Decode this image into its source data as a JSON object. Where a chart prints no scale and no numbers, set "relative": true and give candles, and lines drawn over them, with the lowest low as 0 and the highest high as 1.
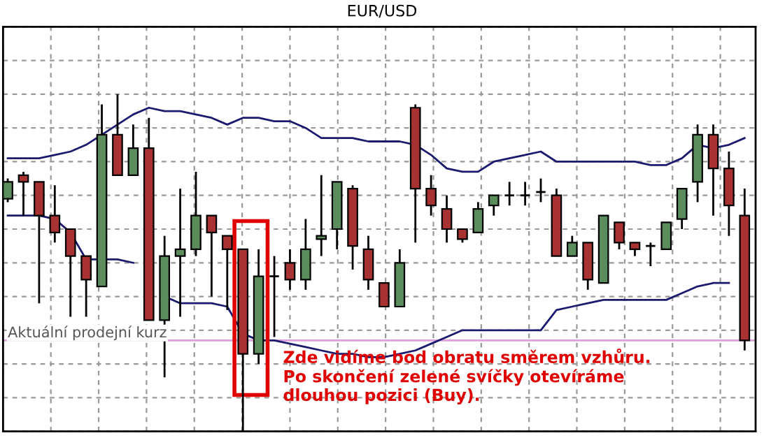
{
  "chart_data": {
    "type": "candlestick",
    "title": "EUR/USD",
    "relative": true,
    "grid": true,
    "tick_labels": false,
    "categories": [
      null,
      null,
      null,
      null,
      null,
      null,
      null,
      null,
      null,
      null,
      null,
      null,
      null,
      null,
      null,
      null,
      null,
      null,
      null,
      null,
      null,
      null,
      null,
      null,
      null,
      null,
      null,
      null,
      null,
      null,
      null,
      null,
      null,
      null,
      null,
      null,
      null,
      null,
      null,
      null,
      null,
      null,
      null,
      null,
      null,
      null,
      null,
      null
    ],
    "ohlc": [
      [
        0.69,
        0.75,
        0.68,
        0.74
      ],
      [
        0.76,
        0.77,
        0.64,
        0.74
      ],
      [
        0.74,
        0.74,
        0.38,
        0.64
      ],
      [
        0.64,
        0.73,
        0.56,
        0.59
      ],
      [
        0.6,
        0.6,
        0.34,
        0.52
      ],
      [
        0.52,
        0.52,
        0.34,
        0.45
      ],
      [
        0.43,
        0.97,
        0.43,
        0.88
      ],
      [
        0.88,
        1.0,
        0.76,
        0.76
      ],
      [
        0.76,
        0.91,
        0.76,
        0.84
      ],
      [
        0.84,
        0.93,
        0.33,
        0.33
      ],
      [
        0.33,
        0.58,
        0.16,
        0.52
      ],
      [
        0.52,
        0.72,
        0.34,
        0.54
      ],
      [
        0.54,
        0.77,
        0.52,
        0.64
      ],
      [
        0.64,
        0.64,
        0.4,
        0.59
      ],
      [
        0.58,
        0.58,
        0.36,
        0.54
      ],
      [
        0.54,
        0.54,
        0.0,
        0.23
      ],
      [
        0.23,
        0.54,
        0.2,
        0.46
      ],
      [
        0.46,
        0.52,
        0.28,
        0.46
      ],
      [
        0.5,
        0.54,
        0.42,
        0.45
      ],
      [
        0.45,
        0.63,
        0.42,
        0.54
      ],
      [
        0.57,
        0.76,
        0.52,
        0.58
      ],
      [
        0.6,
        0.74,
        0.54,
        0.74
      ],
      [
        0.72,
        0.73,
        0.48,
        0.55
      ],
      [
        0.54,
        0.58,
        0.42,
        0.45
      ],
      [
        0.44,
        0.44,
        0.37,
        0.37
      ],
      [
        0.37,
        0.54,
        0.37,
        0.5
      ],
      [
        0.96,
        0.97,
        0.56,
        0.72
      ],
      [
        0.72,
        0.76,
        0.64,
        0.67
      ],
      [
        0.66,
        0.7,
        0.56,
        0.6
      ],
      [
        0.6,
        0.6,
        0.56,
        0.57
      ],
      [
        0.59,
        0.68,
        0.59,
        0.66
      ],
      [
        0.67,
        0.7,
        0.64,
        0.7
      ],
      [
        0.7,
        0.74,
        0.67,
        0.7
      ],
      [
        0.7,
        0.74,
        0.67,
        0.7
      ],
      [
        0.71,
        0.75,
        0.68,
        0.71
      ],
      [
        0.7,
        0.72,
        0.52,
        0.52
      ],
      [
        0.52,
        0.58,
        0.52,
        0.56
      ],
      [
        0.56,
        0.56,
        0.42,
        0.45
      ],
      [
        0.44,
        0.64,
        0.44,
        0.64
      ],
      [
        0.62,
        0.62,
        0.54,
        0.56
      ],
      [
        0.56,
        0.56,
        0.52,
        0.54
      ],
      [
        0.55,
        0.56,
        0.49,
        0.55
      ],
      [
        0.54,
        0.62,
        0.54,
        0.62
      ],
      [
        0.63,
        0.72,
        0.6,
        0.72
      ],
      [
        0.74,
        0.91,
        0.68,
        0.88
      ],
      [
        0.88,
        0.91,
        0.64,
        0.78
      ],
      [
        0.78,
        0.83,
        0.58,
        0.67
      ],
      [
        0.64,
        0.72,
        0.24,
        0.27
      ]
    ],
    "colors": [
      "#5b8c5b",
      "#a83232",
      "#a83232",
      "#a83232",
      "#a83232",
      "#a83232",
      "#5b8c5b",
      "#a83232",
      "#5b8c5b",
      "#a83232",
      "#5b8c5b",
      "#5b8c5b",
      "#5b8c5b",
      "#a83232",
      "#a83232",
      "#a83232",
      "#5b8c5b",
      "#000000",
      "#a83232",
      "#5b8c5b",
      "#5b8c5b",
      "#5b8c5b",
      "#a83232",
      "#a83232",
      "#a83232",
      "#5b8c5b",
      "#a83232",
      "#a83232",
      "#a83232",
      "#a83232",
      "#5b8c5b",
      "#5b8c5b",
      "#000000",
      "#000000",
      "#000000",
      "#a83232",
      "#5b8c5b",
      "#a83232",
      "#5b8c5b",
      "#a83232",
      "#a83232",
      "#000000",
      "#5b8c5b",
      "#5b8c5b",
      "#5b8c5b",
      "#a83232",
      "#a83232",
      "#a83232"
    ],
    "series": [
      {
        "type": "line",
        "color": "#1a1a6e",
        "values": [
          0.81,
          0.81,
          0.81,
          0.82,
          0.83,
          0.85,
          0.88,
          0.91,
          0.94,
          0.96,
          0.95,
          0.95,
          0.94,
          0.93,
          0.91,
          0.93,
          0.93,
          0.92,
          0.92,
          0.9,
          0.87,
          0.87,
          0.87,
          0.86,
          0.86,
          0.86,
          0.85,
          0.82,
          0.78,
          0.77,
          0.77,
          0.8,
          0.81,
          0.82,
          0.83,
          0.8,
          0.8,
          0.8,
          0.8,
          0.8,
          0.8,
          0.79,
          0.79,
          0.81,
          0.85,
          0.84,
          0.85,
          0.87
        ]
      },
      {
        "type": "line",
        "color": "#1a1a6e",
        "values": [
          0.64,
          0.64,
          0.64,
          0.63,
          0.59,
          0.51,
          0.51,
          0.51,
          0.5,
          null,
          0.4,
          0.38,
          0.38,
          0.38,
          0.37,
          0.29,
          0.27,
          0.27,
          0.26,
          0.25,
          0.24,
          0.23,
          0.23,
          0.22,
          0.22,
          0.23,
          0.24,
          0.26,
          0.28,
          0.3,
          0.3,
          0.3,
          0.3,
          0.3,
          0.3,
          0.36,
          0.37,
          0.38,
          0.39,
          0.39,
          0.39,
          0.39,
          0.39,
          0.41,
          0.43,
          0.44,
          0.44,
          null
        ]
      }
    ],
    "ref_lines": [
      {
        "axis": "y",
        "value": 0.27,
        "label": "Aktuální prodejní kurz",
        "color": "#dda0dd"
      }
    ],
    "annotations": [
      "Zde vidíme bod obratu směrem vzhůru.\nPo skončení zelené svíčky otevíráme\ndlouhou pozici (Buy)."
    ]
  }
}
